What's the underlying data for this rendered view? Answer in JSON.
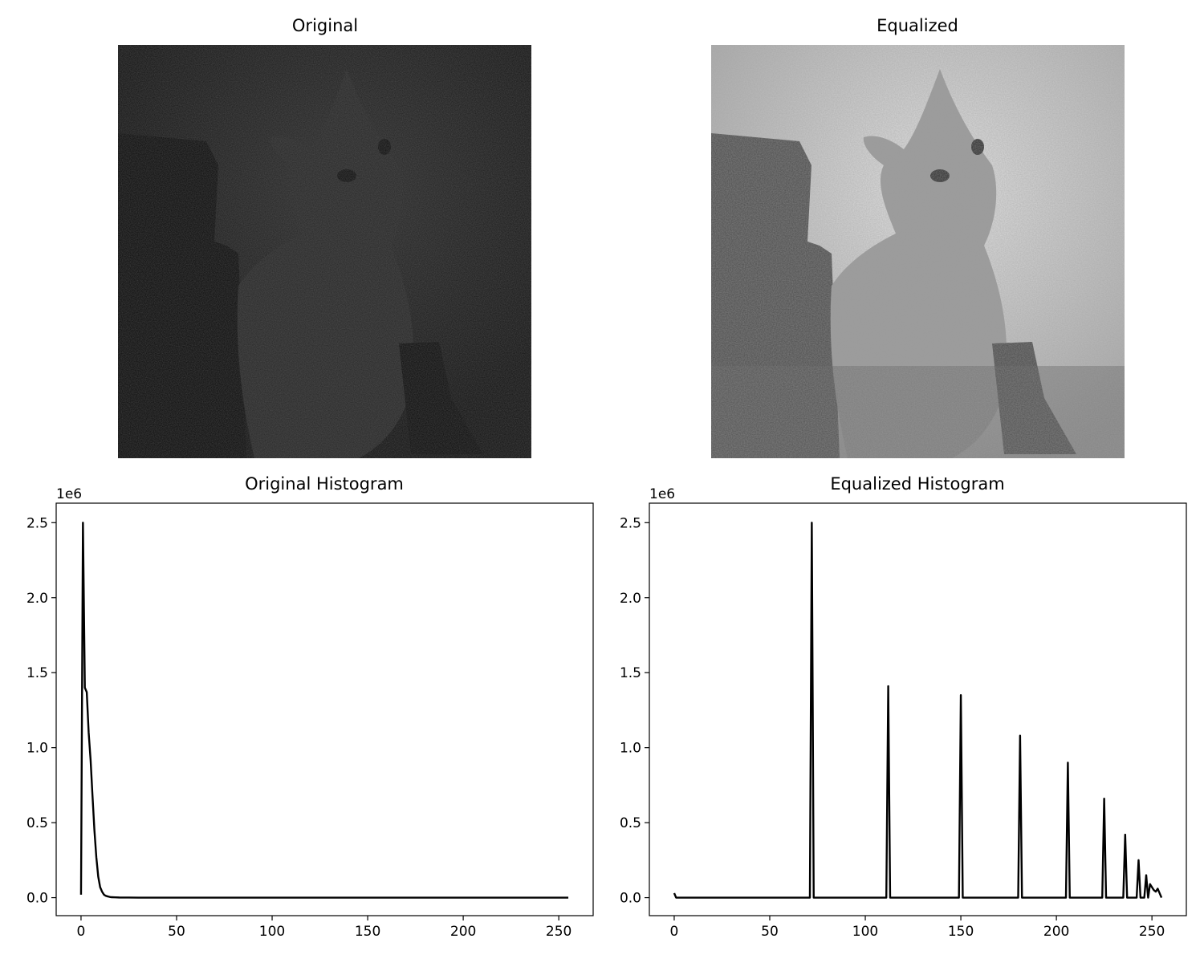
{
  "images": [
    {
      "title": "Original",
      "tone": "dark"
    },
    {
      "title": "Equalized",
      "tone": "equalized"
    }
  ],
  "chart_data": [
    {
      "type": "line",
      "title": "Original Histogram",
      "xlabel": "",
      "ylabel": "",
      "y_offset_label": "1e6",
      "xlim": [
        -13,
        268
      ],
      "ylim": [
        -0.12,
        2.63
      ],
      "xticks": [
        0,
        50,
        100,
        150,
        200,
        250
      ],
      "yticks": [
        0.0,
        0.5,
        1.0,
        1.5,
        2.0,
        2.5
      ],
      "grid": false,
      "line_color": "#000000",
      "series": [
        {
          "x": [
            0,
            1,
            2,
            3,
            4,
            5,
            6,
            7,
            8,
            9,
            10,
            11,
            12,
            13,
            14,
            15,
            16,
            18,
            20,
            25,
            30,
            40,
            60,
            100,
            150,
            200,
            255
          ],
          "values": [
            0.02,
            2.5,
            1.4,
            1.37,
            1.1,
            0.92,
            0.68,
            0.45,
            0.27,
            0.14,
            0.07,
            0.04,
            0.02,
            0.012,
            0.008,
            0.005,
            0.003,
            0.002,
            0.001,
            0.0005,
            0.0,
            0.0,
            0.0,
            0.0,
            0.0,
            0.0,
            0.0
          ]
        }
      ]
    },
    {
      "type": "line",
      "title": "Equalized Histogram",
      "xlabel": "",
      "ylabel": "",
      "y_offset_label": "1e6",
      "xlim": [
        -13,
        268
      ],
      "ylim": [
        -0.12,
        2.63
      ],
      "xticks": [
        0,
        50,
        100,
        150,
        200,
        250
      ],
      "yticks": [
        0.0,
        0.5,
        1.0,
        1.5,
        2.0,
        2.5
      ],
      "grid": false,
      "line_color": "#000000",
      "series": [
        {
          "x": [
            0,
            1,
            71,
            72,
            73,
            111,
            112,
            113,
            149,
            150,
            151,
            180,
            181,
            182,
            205,
            206,
            207,
            224,
            225,
            226,
            235,
            236,
            237,
            242,
            243,
            244,
            246,
            247,
            248,
            249,
            250,
            251,
            252,
            253,
            254,
            255
          ],
          "values": [
            0.03,
            0.0,
            0.0,
            2.5,
            0.0,
            0.0,
            1.41,
            0.0,
            0.0,
            1.35,
            0.0,
            0.0,
            1.08,
            0.0,
            0.0,
            0.9,
            0.0,
            0.0,
            0.66,
            0.0,
            0.0,
            0.42,
            0.0,
            0.0,
            0.25,
            0.0,
            0.0,
            0.15,
            0.0,
            0.09,
            0.07,
            0.05,
            0.04,
            0.06,
            0.03,
            0.0
          ]
        }
      ]
    }
  ]
}
